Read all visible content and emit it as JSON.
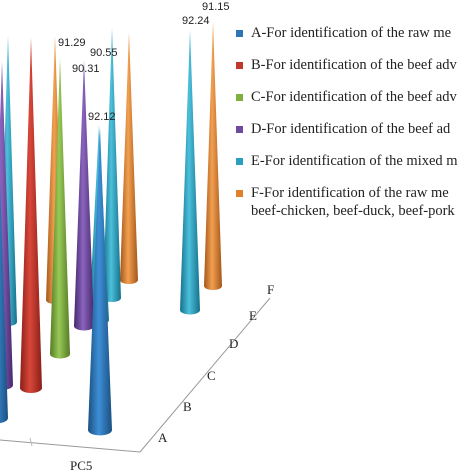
{
  "chart_data": {
    "type": "bar",
    "style": "3d-cone",
    "categories": [
      "A",
      "B",
      "C",
      "D",
      "E",
      "F"
    ],
    "xlabel": "PC5",
    "value_labels": [
      "90.55",
      "91.29",
      "90.31",
      "92.12",
      "92.24",
      "91.15"
    ],
    "legend": [
      {
        "key": "A",
        "text": "A-For identification of the raw me",
        "color": "#2e75b6"
      },
      {
        "key": "B",
        "text": "B-For identification of the beef adv",
        "color": "#c0392b"
      },
      {
        "key": "C",
        "text": "C-For identification of the beef adv",
        "color": "#7fb03f"
      },
      {
        "key": "D",
        "text": "D-For identification of the beef ad",
        "color": "#6e4a9e"
      },
      {
        "key": "E",
        "text": "E-For identification of the mixed m",
        "color": "#2aa0c0"
      },
      {
        "key": "F",
        "text": "F-For identification of the raw me\nbeef-chicken, beef-duck, beef-pork",
        "color": "#e0802a"
      }
    ]
  }
}
